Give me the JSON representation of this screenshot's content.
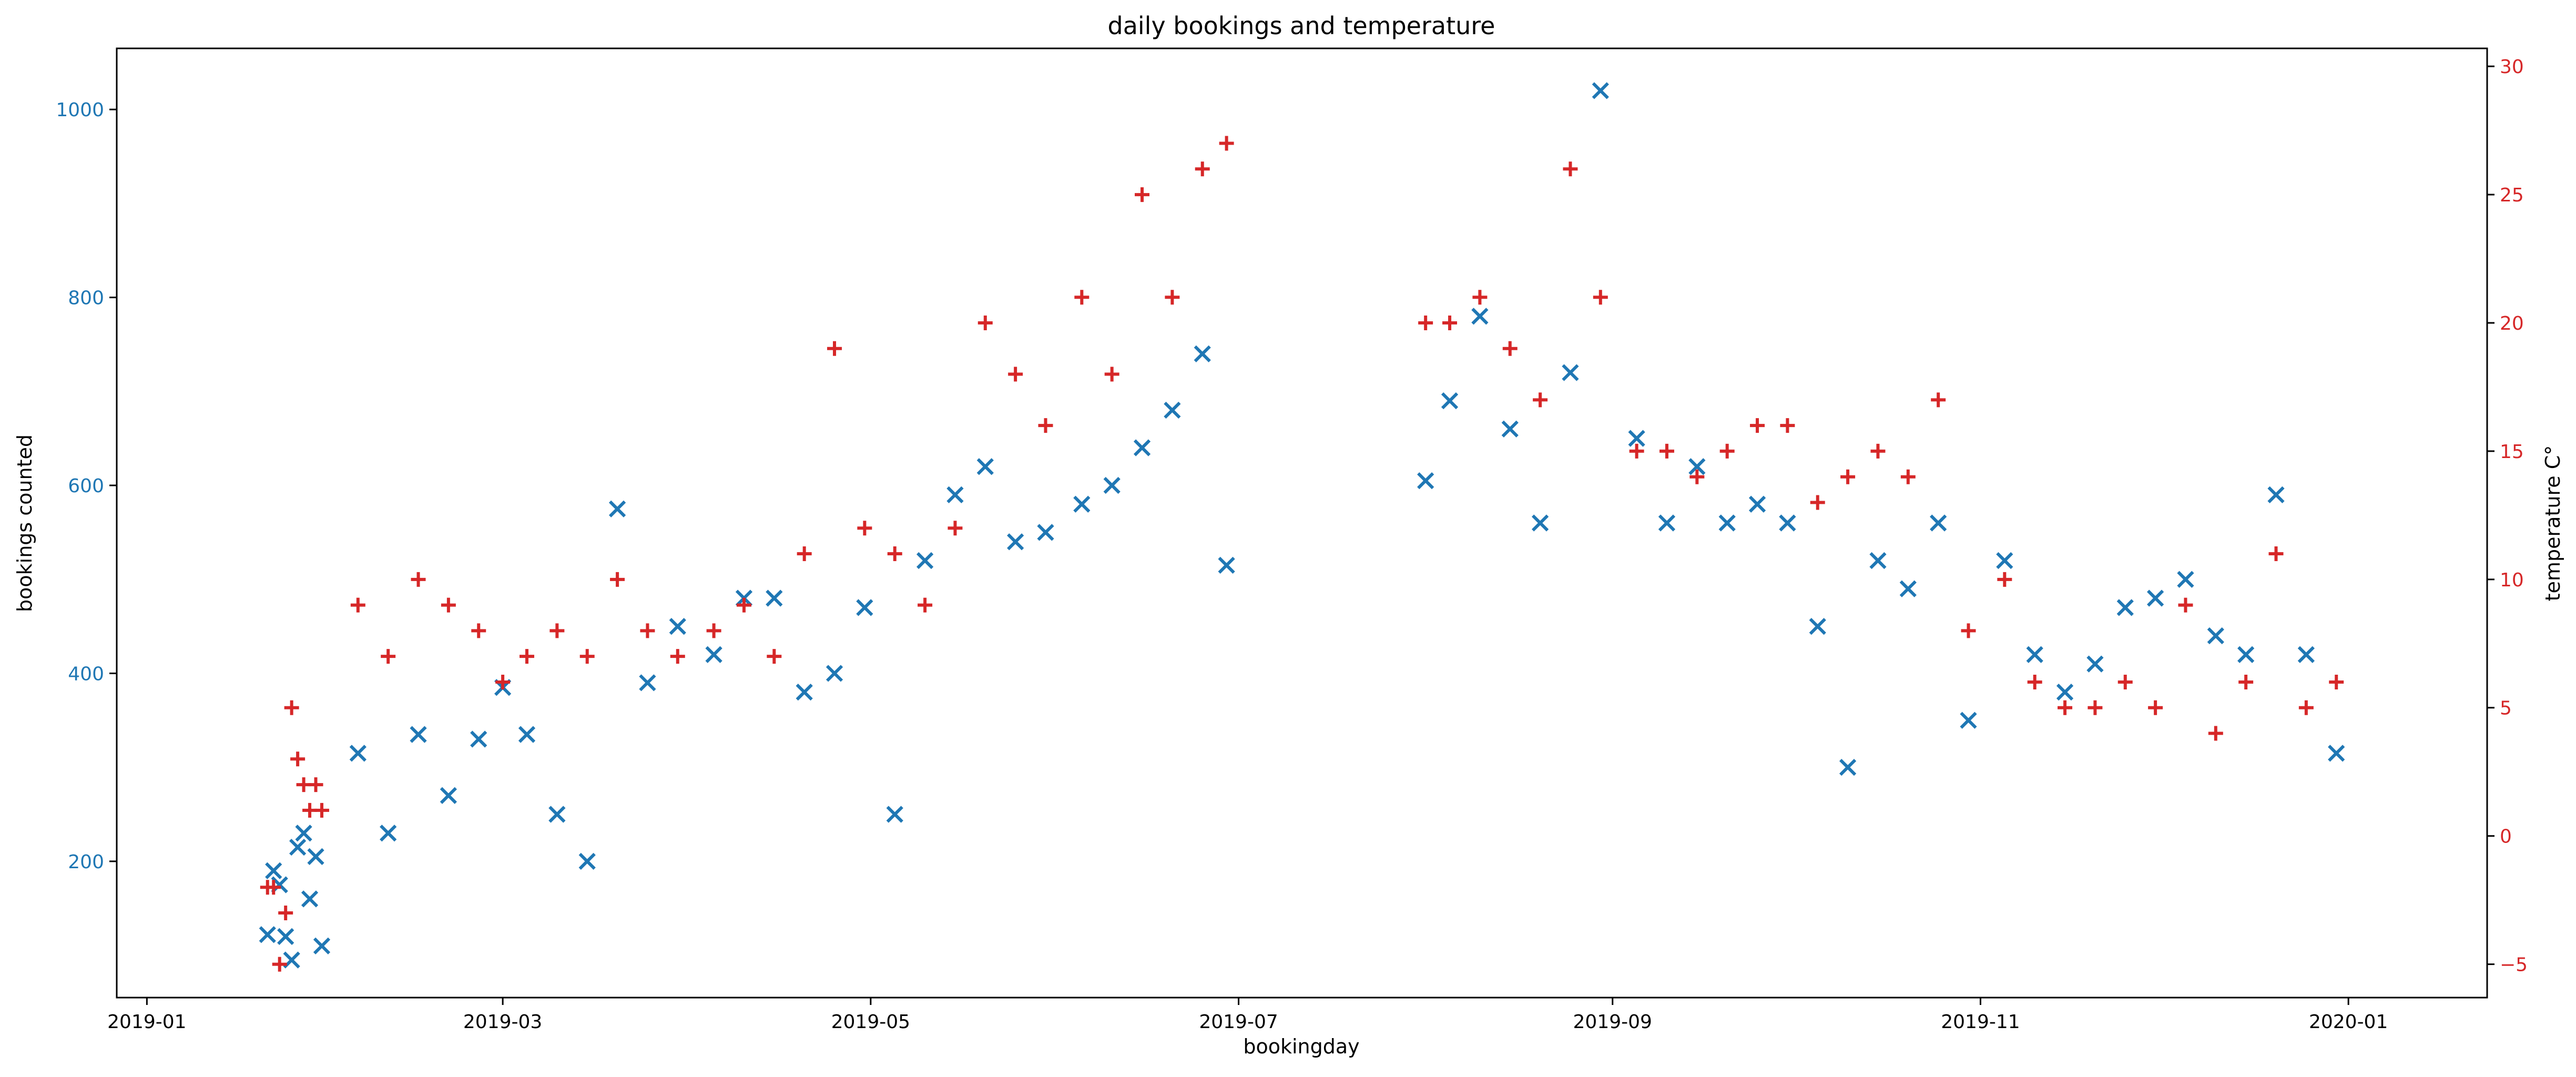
{
  "chart_data": {
    "type": "scatter",
    "title": "daily bookings and temperature",
    "xlabel": "bookingday",
    "ylabel": "bookings counted",
    "y2label": "temperature C°",
    "xlim": [
      "2018-12-27",
      "2020-01-24"
    ],
    "ylim": [
      55,
      1065
    ],
    "y2lim": [
      -6.3,
      30.7
    ],
    "x_ticks": [
      {
        "date": "2019-01-01",
        "label": "2019-01"
      },
      {
        "date": "2019-03-01",
        "label": "2019-03"
      },
      {
        "date": "2019-05-01",
        "label": "2019-05"
      },
      {
        "date": "2019-07-01",
        "label": "2019-07"
      },
      {
        "date": "2019-09-01",
        "label": "2019-09"
      },
      {
        "date": "2019-11-01",
        "label": "2019-11"
      },
      {
        "date": "2020-01-01",
        "label": "2020-01"
      }
    ],
    "y_ticks": [
      200,
      400,
      600,
      800,
      1000
    ],
    "y2_ticks": [
      -5,
      0,
      5,
      10,
      15,
      20,
      25,
      30
    ],
    "colors": {
      "bookings": "#1f77b4",
      "temperature": "#d62728"
    },
    "series": [
      {
        "marker": "x",
        "axis": "left",
        "x": [
          "2019-01-21",
          "2019-01-22",
          "2019-01-23",
          "2019-01-24",
          "2019-01-25",
          "2019-01-26",
          "2019-01-27",
          "2019-01-28",
          "2019-01-29",
          "2019-01-30",
          "2019-02-05",
          "2019-02-10",
          "2019-02-15",
          "2019-02-20",
          "2019-02-25",
          "2019-03-01",
          "2019-03-05",
          "2019-03-10",
          "2019-03-15",
          "2019-03-20",
          "2019-03-25",
          "2019-03-30",
          "2019-04-05",
          "2019-04-10",
          "2019-04-15",
          "2019-04-20",
          "2019-04-25",
          "2019-04-30",
          "2019-05-05",
          "2019-05-10",
          "2019-05-15",
          "2019-05-20",
          "2019-05-25",
          "2019-05-30",
          "2019-06-05",
          "2019-06-10",
          "2019-06-15",
          "2019-06-20",
          "2019-06-25",
          "2019-06-29",
          "2019-08-01",
          "2019-08-05",
          "2019-08-10",
          "2019-08-15",
          "2019-08-20",
          "2019-08-25",
          "2019-08-30",
          "2019-09-05",
          "2019-09-10",
          "2019-09-15",
          "2019-09-20",
          "2019-09-25",
          "2019-09-30",
          "2019-10-05",
          "2019-10-10",
          "2019-10-15",
          "2019-10-20",
          "2019-10-25",
          "2019-10-30",
          "2019-11-05",
          "2019-11-10",
          "2019-11-15",
          "2019-11-20",
          "2019-11-25",
          "2019-11-30",
          "2019-12-05",
          "2019-12-10",
          "2019-12-15",
          "2019-12-20",
          "2019-12-25",
          "2019-12-30"
        ],
        "y": [
          122,
          190,
          175,
          120,
          95,
          215,
          230,
          160,
          205,
          110,
          315,
          230,
          335,
          270,
          330,
          385,
          335,
          250,
          200,
          575,
          390,
          450,
          420,
          480,
          480,
          380,
          400,
          470,
          250,
          520,
          590,
          620,
          540,
          550,
          580,
          600,
          640,
          680,
          740,
          515,
          605,
          690,
          780,
          660,
          560,
          720,
          1020,
          650,
          560,
          620,
          560,
          580,
          560,
          450,
          300,
          520,
          490,
          560,
          350,
          520,
          420,
          380,
          410,
          470,
          480,
          500,
          440,
          420,
          590,
          420,
          315
        ]
      },
      {
        "marker": "+",
        "axis": "right",
        "x": [
          "2019-01-21",
          "2019-01-22",
          "2019-01-23",
          "2019-01-24",
          "2019-01-25",
          "2019-01-26",
          "2019-01-27",
          "2019-01-28",
          "2019-01-29",
          "2019-01-30",
          "2019-02-05",
          "2019-02-10",
          "2019-02-15",
          "2019-02-20",
          "2019-02-25",
          "2019-03-01",
          "2019-03-05",
          "2019-03-10",
          "2019-03-15",
          "2019-03-20",
          "2019-03-25",
          "2019-03-30",
          "2019-04-05",
          "2019-04-10",
          "2019-04-15",
          "2019-04-20",
          "2019-04-25",
          "2019-04-30",
          "2019-05-05",
          "2019-05-10",
          "2019-05-15",
          "2019-05-20",
          "2019-05-25",
          "2019-05-30",
          "2019-06-05",
          "2019-06-10",
          "2019-06-15",
          "2019-06-20",
          "2019-06-25",
          "2019-06-29",
          "2019-08-01",
          "2019-08-05",
          "2019-08-10",
          "2019-08-15",
          "2019-08-20",
          "2019-08-25",
          "2019-08-30",
          "2019-09-05",
          "2019-09-10",
          "2019-09-15",
          "2019-09-20",
          "2019-09-25",
          "2019-09-30",
          "2019-10-05",
          "2019-10-10",
          "2019-10-15",
          "2019-10-20",
          "2019-10-25",
          "2019-10-30",
          "2019-11-05",
          "2019-11-10",
          "2019-11-15",
          "2019-11-20",
          "2019-11-25",
          "2019-11-30",
          "2019-12-05",
          "2019-12-10",
          "2019-12-15",
          "2019-12-20",
          "2019-12-25",
          "2019-12-30"
        ],
        "y": [
          -2,
          -2,
          -5,
          -3,
          5,
          3,
          2,
          1,
          2,
          1,
          9,
          7,
          10,
          9,
          8,
          6,
          7,
          8,
          7,
          10,
          8,
          7,
          8,
          9,
          7,
          11,
          19,
          12,
          11,
          9,
          12,
          20,
          18,
          16,
          21,
          18,
          25,
          21,
          26,
          27,
          20,
          20,
          21,
          19,
          17,
          26,
          21,
          15,
          15,
          14,
          15,
          16,
          16,
          13,
          14,
          15,
          14,
          17,
          8,
          10,
          6,
          5,
          5,
          6,
          5,
          9,
          4,
          6,
          11,
          5,
          6
        ]
      }
    ]
  }
}
